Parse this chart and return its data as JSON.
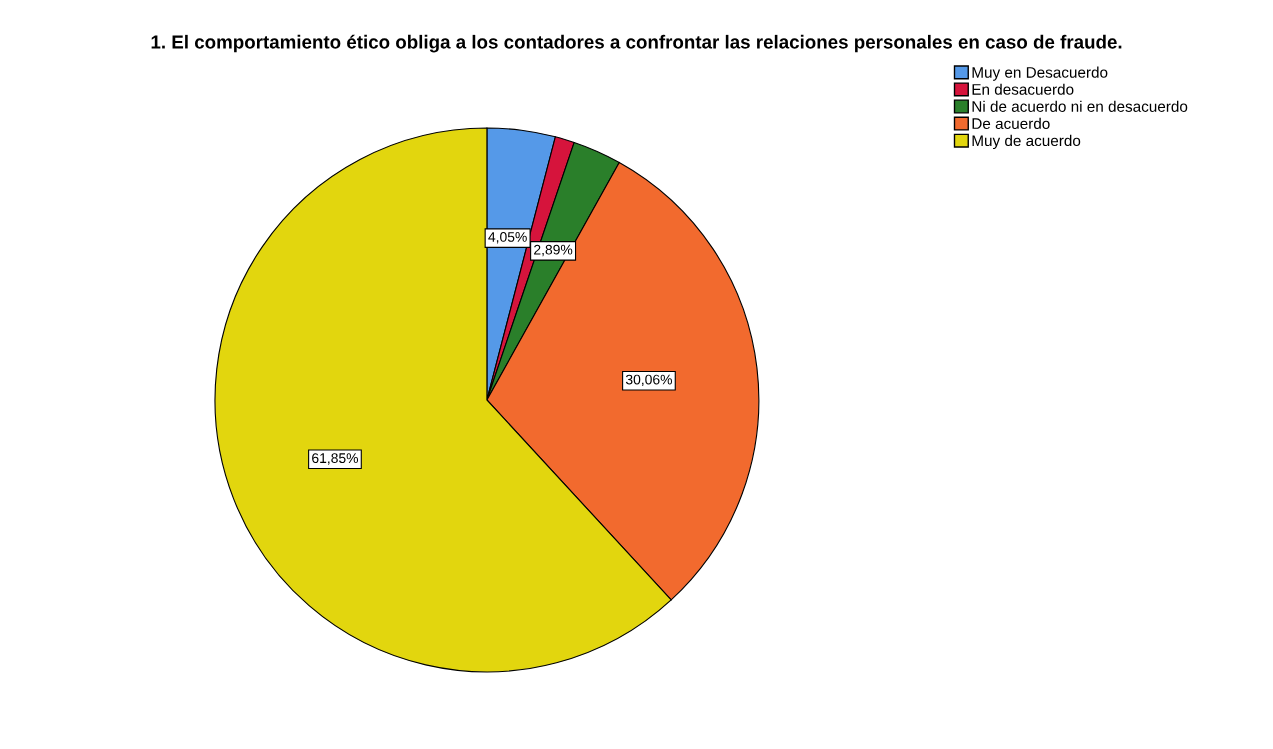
{
  "chart_data": {
    "type": "pie",
    "title": "1. El comportamiento ético obliga a los contadores a confrontar las relaciones personales en caso de fraude.",
    "categories": [
      "Muy en Desacuerdo",
      "En desacuerdo",
      "Ni de acuerdo ni en desacuerdo",
      "De acuerdo",
      "Muy de acuerdo"
    ],
    "values": [
      4.05,
      1.15,
      2.89,
      30.06,
      61.85
    ],
    "colors": [
      "#5599e8",
      "#d6143c",
      "#2a7f2a",
      "#f26a2e",
      "#e2d60e"
    ],
    "value_labels": [
      "4,05%",
      null,
      "2,89%",
      "30,06%",
      "61,85%"
    ],
    "legend": "top right"
  }
}
